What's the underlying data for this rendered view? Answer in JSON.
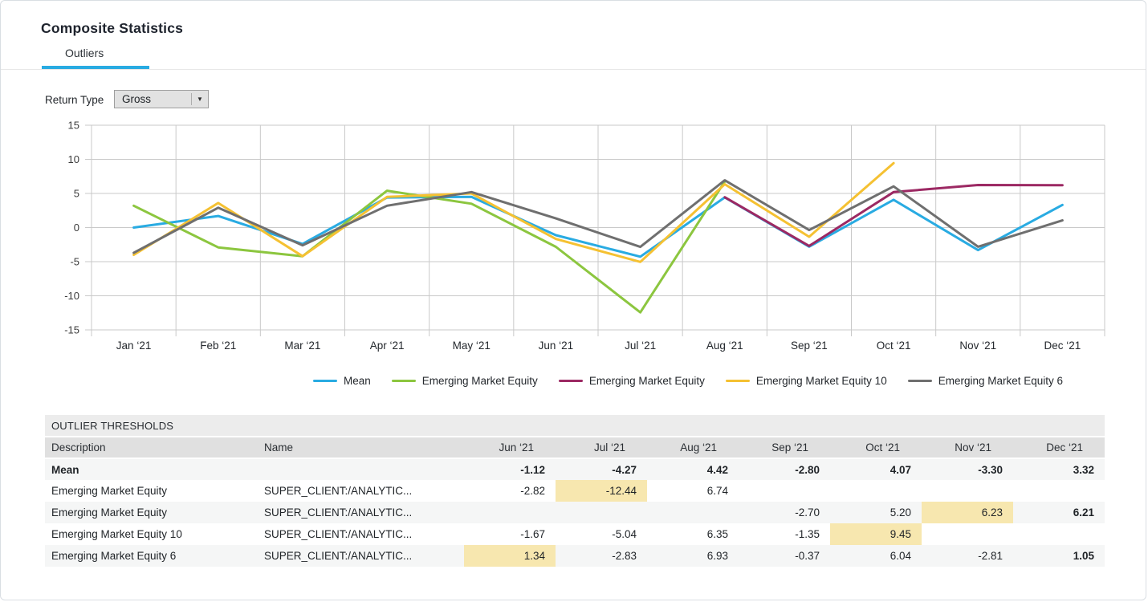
{
  "header": {
    "title": "Composite Statistics",
    "accent_color": "#29abe2",
    "tabs": [
      {
        "label": "Outliers",
        "active": true
      }
    ]
  },
  "controls": {
    "return_type_label": "Return Type",
    "return_type_value": "Gross"
  },
  "chart_data": {
    "type": "line",
    "x": [
      "Jan ‘21",
      "Feb ‘21",
      "Mar ‘21",
      "Apr ‘21",
      "May ‘21",
      "Jun ‘21",
      "Jul ‘21",
      "Aug ‘21",
      "Sep ‘21",
      "Oct ‘21",
      "Nov ‘21",
      "Dec ‘21"
    ],
    "ylim": [
      -15,
      15
    ],
    "ytick_step": 5,
    "yticks": [
      15,
      10,
      5,
      0,
      -5,
      -10,
      -15
    ],
    "grid": true,
    "legend_position": "bottom",
    "series": [
      {
        "id": "mean",
        "name": "Mean",
        "color": "#29abe2",
        "values": [
          0.0,
          1.7,
          -2.4,
          4.4,
          4.5,
          -1.12,
          -4.27,
          4.42,
          -2.8,
          4.07,
          -3.3,
          3.32
        ]
      },
      {
        "id": "emerging-market-equity",
        "name": "Emerging Market Equity",
        "color": "#8cc63f",
        "values": [
          3.2,
          -2.9,
          -4.2,
          5.4,
          3.5,
          -2.82,
          -12.44,
          6.74,
          null,
          null,
          null,
          null
        ]
      },
      {
        "id": "emerging-market-equity-2",
        "name": "Emerging Market Equity",
        "color": "#9c2963",
        "values": [
          null,
          null,
          null,
          null,
          null,
          null,
          null,
          4.45,
          -2.7,
          5.2,
          6.23,
          6.21
        ]
      },
      {
        "id": "emerging-market-equity-10",
        "name": "Emerging Market Equity 10",
        "color": "#f5c132",
        "values": [
          -4.0,
          3.6,
          -4.2,
          4.5,
          5.0,
          -1.67,
          -5.04,
          6.35,
          -1.35,
          9.45,
          null,
          null
        ]
      },
      {
        "id": "emerging-market-equity-6",
        "name": "Emerging Market Equity 6",
        "color": "#6f6f6f",
        "values": [
          -3.7,
          2.9,
          -2.6,
          3.2,
          5.2,
          1.34,
          -2.83,
          6.93,
          -0.37,
          6.04,
          -2.81,
          1.05
        ]
      }
    ]
  },
  "table": {
    "title": "OUTLIER THRESHOLDS",
    "highlight_color": "#f7e7af",
    "columns": [
      "Description",
      "Name",
      "Jun ‘21",
      "Jul ‘21",
      "Aug ‘21",
      "Sep ‘21",
      "Oct ‘21",
      "Nov ‘21",
      "Dec ‘21"
    ],
    "rows": [
      {
        "description": "Mean",
        "name": "",
        "cells": [
          "-1.12",
          "-4.27",
          "4.42",
          "-2.80",
          "4.07",
          "-3.30",
          "3.32"
        ],
        "bold_row": true,
        "highlight": -1,
        "bold_cells": []
      },
      {
        "description": "Emerging Market Equity",
        "name": "SUPER_CLIENT:/ANALYTIC...",
        "cells": [
          "-2.82",
          "-12.44",
          "6.74",
          "",
          "",
          "",
          ""
        ],
        "bold_row": false,
        "highlight": 1,
        "bold_cells": []
      },
      {
        "description": "Emerging Market Equity",
        "name": "SUPER_CLIENT:/ANALYTIC...",
        "cells": [
          "",
          "",
          "",
          "-2.70",
          "5.20",
          "6.23",
          "6.21"
        ],
        "bold_row": false,
        "highlight": 5,
        "bold_cells": [
          6
        ]
      },
      {
        "description": "Emerging Market Equity 10",
        "name": "SUPER_CLIENT:/ANALYTIC...",
        "cells": [
          "-1.67",
          "-5.04",
          "6.35",
          "-1.35",
          "9.45",
          "",
          ""
        ],
        "bold_row": false,
        "highlight": 4,
        "bold_cells": []
      },
      {
        "description": "Emerging Market Equity 6",
        "name": "SUPER_CLIENT:/ANALYTIC...",
        "cells": [
          "1.34",
          "-2.83",
          "6.93",
          "-0.37",
          "6.04",
          "-2.81",
          "1.05"
        ],
        "bold_row": false,
        "highlight": 0,
        "bold_cells": [
          6
        ]
      }
    ]
  }
}
